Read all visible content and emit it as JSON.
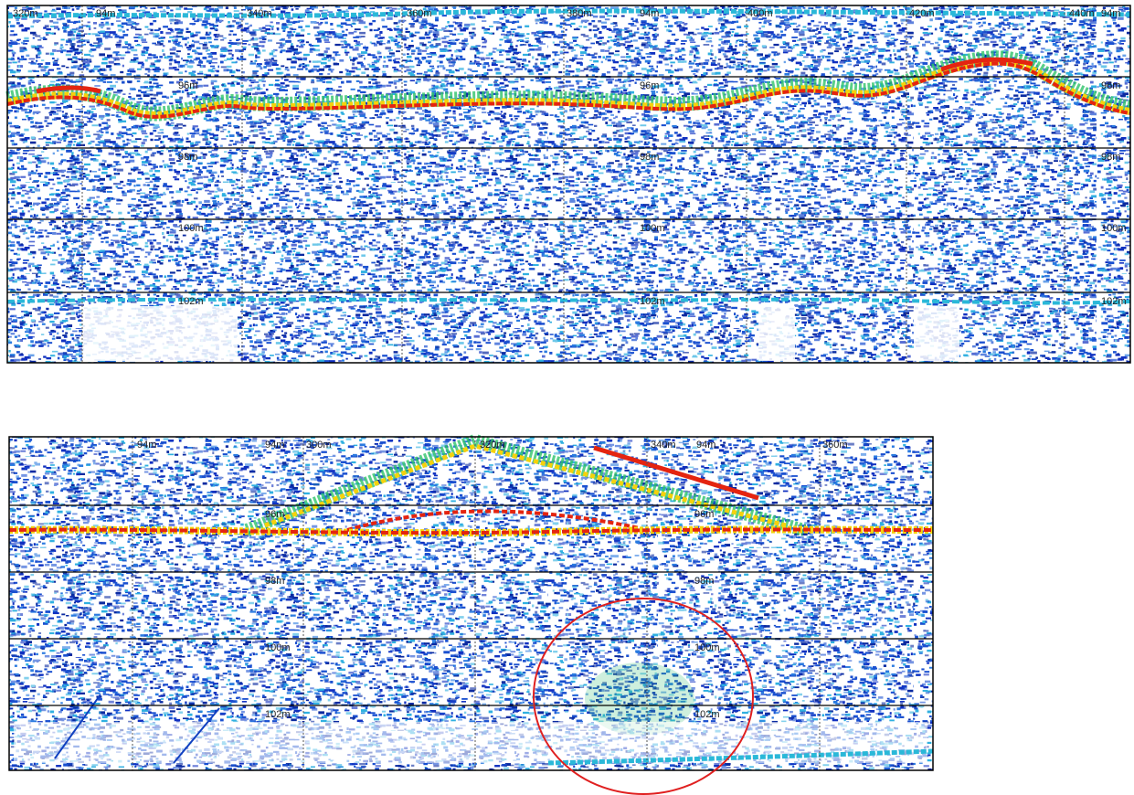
{
  "panels": [
    {
      "top_labels": [
        "320m",
        "94m",
        "340m",
        "360m",
        "380m",
        "94m",
        "400m",
        "420m",
        "440m",
        "94m"
      ],
      "depth_labels": [
        "96m",
        "98m",
        "100m",
        "102m"
      ]
    },
    {
      "top_labels": [
        "94m",
        "94m",
        "300m",
        "320m",
        "340m",
        "94m",
        "360m"
      ],
      "depth_labels": [
        "96m",
        "98m",
        "100m",
        "102m"
      ]
    }
  ]
}
